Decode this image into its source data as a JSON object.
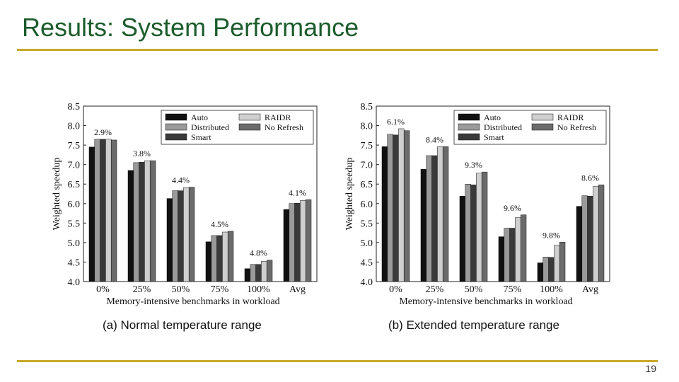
{
  "slide": {
    "title": "Results: System Performance",
    "page_number": "19",
    "accent_color": "#c9a82a",
    "title_color": "#1c5c2c"
  },
  "series_colors": [
    "#111111",
    "#9a9a9a",
    "#3a3a3a",
    "#cfcfcf",
    "#6b6b6b"
  ],
  "chart_data": [
    {
      "type": "bar",
      "caption": "(a) Normal temperature range",
      "xlabel": "Memory-intensive benchmarks in workload",
      "ylabel": "Weighted speedup",
      "ylim": [
        4.0,
        8.5
      ],
      "yticks": [
        "4.0",
        "4.5",
        "5.0",
        "5.5",
        "6.0",
        "6.5",
        "7.0",
        "7.5",
        "8.0",
        "8.5"
      ],
      "categories": [
        "0%",
        "25%",
        "50%",
        "75%",
        "100%",
        "Avg"
      ],
      "series": [
        {
          "name": "Auto",
          "values": [
            7.45,
            6.85,
            6.13,
            5.02,
            4.33,
            5.85
          ]
        },
        {
          "name": "Distributed",
          "values": [
            7.65,
            7.05,
            6.33,
            5.18,
            4.44,
            6.0
          ]
        },
        {
          "name": "Smart",
          "values": [
            7.65,
            7.06,
            6.33,
            5.18,
            4.44,
            6.01
          ]
        },
        {
          "name": "RAIDR",
          "values": [
            7.65,
            7.1,
            6.41,
            5.27,
            4.52,
            6.08
          ]
        },
        {
          "name": "No Refresh",
          "values": [
            7.63,
            7.1,
            6.42,
            5.29,
            4.55,
            6.1
          ]
        }
      ],
      "annotations": [
        "2.9%",
        "3.8%",
        "4.4%",
        "4.5%",
        "4.8%",
        "4.1%"
      ],
      "legend_position": "top-right",
      "grid": false
    },
    {
      "type": "bar",
      "caption": "(b) Extended temperature range",
      "xlabel": "Memory-intensive benchmarks in workload",
      "ylabel": "Weighted speedup",
      "ylim": [
        4.0,
        8.5
      ],
      "yticks": [
        "4.0",
        "4.5",
        "5.0",
        "5.5",
        "6.0",
        "6.5",
        "7.0",
        "7.5",
        "8.0",
        "8.5"
      ],
      "categories": [
        "0%",
        "25%",
        "50%",
        "75%",
        "100%",
        "Avg"
      ],
      "series": [
        {
          "name": "Auto",
          "values": [
            7.46,
            6.88,
            6.19,
            5.15,
            4.48,
            5.93
          ]
        },
        {
          "name": "Distributed",
          "values": [
            7.78,
            7.23,
            6.5,
            5.37,
            4.63,
            6.2
          ]
        },
        {
          "name": "Smart",
          "values": [
            7.76,
            7.23,
            6.48,
            5.37,
            4.62,
            6.19
          ]
        },
        {
          "name": "RAIDR",
          "values": [
            7.92,
            7.46,
            6.78,
            5.64,
            4.93,
            6.44
          ]
        },
        {
          "name": "No Refresh",
          "values": [
            7.87,
            7.46,
            6.81,
            5.71,
            5.01,
            6.48
          ]
        }
      ],
      "annotations": [
        "6.1%",
        "8.4%",
        "9.3%",
        "9.6%",
        "9.8%",
        "8.6%"
      ],
      "legend_position": "top-right",
      "grid": false
    }
  ]
}
